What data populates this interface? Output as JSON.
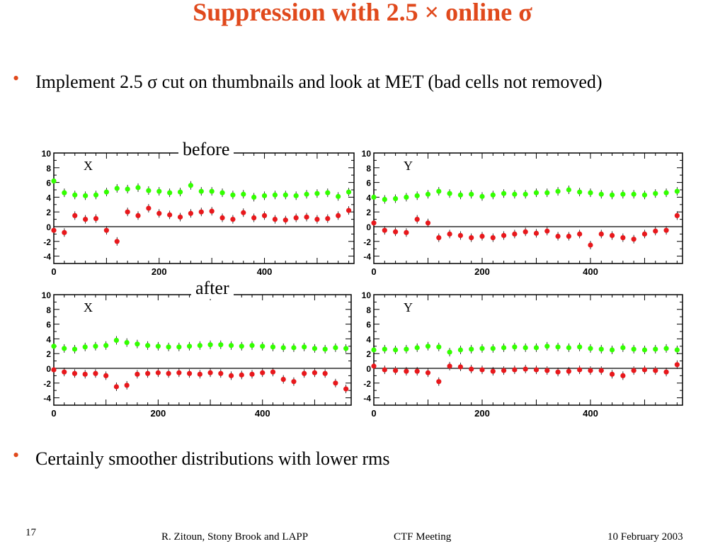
{
  "slide": {
    "title": "Suppression with 2.5 × online σ",
    "bullets": [
      "Implement 2.5 σ cut on thumbnails and look at MET (bad cells not removed)",
      "Certainly smoother distributions with lower rms"
    ],
    "label_before": "before",
    "label_after": "after",
    "footer": {
      "page_number": "17",
      "author": "R. Zitoun, Stony Brook and LAPP",
      "meeting": "CTF  Meeting",
      "date": "10 February 2003"
    }
  },
  "colors": {
    "title": "#e0491c",
    "green_series": "#33ff00",
    "red_series": "#e8181c",
    "axis": "#000000"
  },
  "chart_data": [
    {
      "type": "scatter",
      "panel": "before-X",
      "title": "X",
      "xlim": [
        0,
        570
      ],
      "ylim": [
        -5,
        10
      ],
      "xticks": [
        0,
        200,
        400
      ],
      "yticks": [
        -4,
        -2,
        0,
        2,
        4,
        6,
        8,
        10
      ],
      "series": [
        {
          "color": "green",
          "x": [
            0,
            20,
            40,
            60,
            80,
            100,
            120,
            140,
            160,
            180,
            200,
            220,
            240,
            260,
            280,
            300,
            320,
            340,
            360,
            380,
            400,
            420,
            440,
            460,
            480,
            500,
            520,
            540,
            560
          ],
          "y": [
            6.2,
            4.6,
            4.3,
            4.2,
            4.3,
            4.7,
            5.2,
            5.1,
            5.3,
            4.9,
            4.8,
            4.6,
            4.7,
            5.6,
            4.8,
            4.8,
            4.6,
            4.3,
            4.4,
            4.0,
            4.2,
            4.3,
            4.3,
            4.2,
            4.4,
            4.5,
            4.6,
            4.1,
            4.7
          ]
        },
        {
          "color": "red",
          "x": [
            0,
            20,
            40,
            60,
            80,
            100,
            120,
            140,
            160,
            180,
            200,
            220,
            240,
            260,
            280,
            300,
            320,
            340,
            360,
            380,
            400,
            420,
            440,
            460,
            480,
            500,
            520,
            540,
            560
          ],
          "y": [
            -0.5,
            -0.8,
            1.5,
            1.0,
            1.1,
            -0.5,
            -2.0,
            2.0,
            1.5,
            2.5,
            1.8,
            1.6,
            1.3,
            1.8,
            2.0,
            2.1,
            1.2,
            1.0,
            1.9,
            1.2,
            1.5,
            1.0,
            0.9,
            1.2,
            1.3,
            1.0,
            1.1,
            1.5,
            2.2
          ]
        }
      ]
    },
    {
      "type": "scatter",
      "panel": "before-Y",
      "title": "Y",
      "xlim": [
        0,
        570
      ],
      "ylim": [
        -5,
        10
      ],
      "xticks": [
        0,
        200,
        400
      ],
      "yticks": [
        -4,
        -2,
        0,
        2,
        4,
        6,
        8,
        10
      ],
      "series": [
        {
          "color": "green",
          "x": [
            0,
            20,
            40,
            60,
            80,
            100,
            120,
            140,
            160,
            180,
            200,
            220,
            240,
            260,
            280,
            300,
            320,
            340,
            360,
            380,
            400,
            420,
            440,
            460,
            480,
            500,
            520,
            540,
            560
          ],
          "y": [
            4.0,
            3.7,
            3.8,
            4.0,
            4.2,
            4.4,
            4.8,
            4.5,
            4.3,
            4.4,
            4.1,
            4.3,
            4.5,
            4.4,
            4.4,
            4.6,
            4.6,
            4.8,
            5.0,
            4.7,
            4.6,
            4.4,
            4.3,
            4.4,
            4.4,
            4.3,
            4.5,
            4.6,
            4.8
          ]
        },
        {
          "color": "red",
          "x": [
            0,
            20,
            40,
            60,
            80,
            100,
            120,
            140,
            160,
            180,
            200,
            220,
            240,
            260,
            280,
            300,
            320,
            340,
            360,
            380,
            400,
            420,
            440,
            460,
            480,
            500,
            520,
            540,
            560
          ],
          "y": [
            0.5,
            -0.5,
            -0.7,
            -0.8,
            1.0,
            0.5,
            -1.5,
            -1.0,
            -1.2,
            -1.5,
            -1.3,
            -1.5,
            -1.2,
            -1.0,
            -0.7,
            -0.9,
            -0.6,
            -1.3,
            -1.3,
            -1.0,
            -2.5,
            -1.0,
            -1.2,
            -1.5,
            -1.7,
            -1.0,
            -0.6,
            -0.5,
            1.5
          ]
        }
      ]
    },
    {
      "type": "scatter",
      "panel": "after-X",
      "title": "X",
      "xlim": [
        0,
        570
      ],
      "ylim": [
        -5,
        10
      ],
      "xticks": [
        0,
        200,
        400
      ],
      "yticks": [
        -4,
        -2,
        0,
        2,
        4,
        6,
        8,
        10
      ],
      "series": [
        {
          "color": "green",
          "x": [
            0,
            20,
            40,
            60,
            80,
            100,
            120,
            140,
            160,
            180,
            200,
            220,
            240,
            260,
            280,
            300,
            320,
            340,
            360,
            380,
            400,
            420,
            440,
            460,
            480,
            500,
            520,
            540,
            560
          ],
          "y": [
            3.0,
            2.7,
            2.6,
            2.9,
            3.0,
            3.1,
            3.8,
            3.5,
            3.3,
            3.1,
            3.0,
            2.9,
            2.9,
            3.0,
            3.1,
            3.2,
            3.2,
            3.1,
            3.0,
            3.1,
            3.0,
            2.9,
            2.8,
            2.8,
            2.9,
            2.7,
            2.6,
            2.8,
            2.7
          ]
        },
        {
          "color": "red",
          "x": [
            0,
            20,
            40,
            60,
            80,
            100,
            120,
            140,
            160,
            180,
            200,
            220,
            240,
            260,
            280,
            300,
            320,
            340,
            360,
            380,
            400,
            420,
            440,
            460,
            480,
            500,
            520,
            540,
            560
          ],
          "y": [
            -0.2,
            -0.5,
            -0.7,
            -0.8,
            -0.7,
            -1.0,
            -2.5,
            -2.3,
            -0.8,
            -0.7,
            -0.6,
            -0.7,
            -0.6,
            -0.7,
            -0.8,
            -0.6,
            -0.7,
            -1.0,
            -0.9,
            -0.8,
            -0.6,
            -0.5,
            -1.5,
            -1.8,
            -0.7,
            -0.6,
            -0.7,
            -2.0,
            -2.8
          ]
        }
      ]
    },
    {
      "type": "scatter",
      "panel": "after-Y",
      "title": "Y",
      "xlim": [
        0,
        570
      ],
      "ylim": [
        -5,
        10
      ],
      "xticks": [
        0,
        200,
        400
      ],
      "yticks": [
        -4,
        -2,
        0,
        2,
        4,
        6,
        8,
        10
      ],
      "series": [
        {
          "color": "green",
          "x": [
            0,
            20,
            40,
            60,
            80,
            100,
            120,
            140,
            160,
            180,
            200,
            220,
            240,
            260,
            280,
            300,
            320,
            340,
            360,
            380,
            400,
            420,
            440,
            460,
            480,
            500,
            520,
            540,
            560
          ],
          "y": [
            2.5,
            2.6,
            2.5,
            2.6,
            2.8,
            3.0,
            2.9,
            2.2,
            2.5,
            2.6,
            2.7,
            2.7,
            2.8,
            2.9,
            2.8,
            2.8,
            3.0,
            2.9,
            2.8,
            2.9,
            2.7,
            2.6,
            2.5,
            2.8,
            2.6,
            2.5,
            2.6,
            2.7,
            2.5
          ]
        },
        {
          "color": "red",
          "x": [
            0,
            20,
            40,
            60,
            80,
            100,
            120,
            140,
            160,
            180,
            200,
            220,
            240,
            260,
            280,
            300,
            320,
            340,
            360,
            380,
            400,
            420,
            440,
            460,
            480,
            500,
            520,
            540,
            560
          ],
          "y": [
            0.3,
            -0.2,
            -0.3,
            -0.4,
            -0.4,
            -0.6,
            -1.8,
            0.3,
            0.2,
            -0.1,
            -0.2,
            -0.4,
            -0.3,
            -0.2,
            -0.1,
            -0.2,
            -0.3,
            -0.5,
            -0.4,
            -0.2,
            -0.3,
            -0.3,
            -0.8,
            -1.0,
            -0.3,
            -0.2,
            -0.3,
            -0.5,
            0.5
          ]
        }
      ]
    }
  ]
}
